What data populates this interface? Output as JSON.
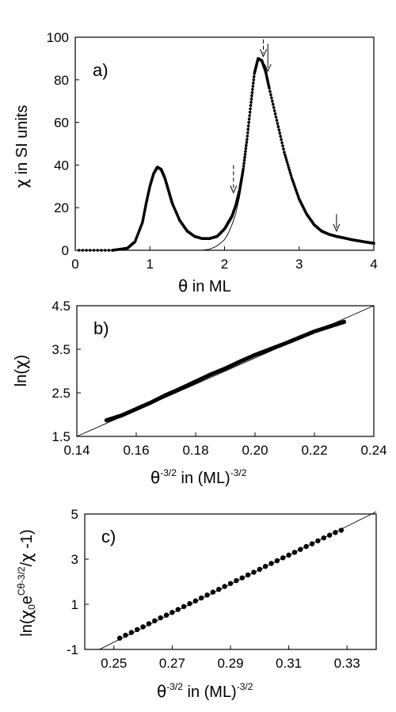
{
  "chart_data": [
    {
      "type": "line",
      "label": "a)",
      "xlabel": "θ in ML",
      "ylabel": "χ in SI units",
      "xlim": [
        0,
        4
      ],
      "ylim": [
        0,
        100
      ],
      "xticks": [
        0,
        1,
        2,
        3,
        4
      ],
      "yticks": [
        0,
        20,
        40,
        60,
        80,
        100
      ],
      "grid": false,
      "series": [
        {
          "style": "dense markers",
          "x": [
            0.5,
            0.7,
            0.8,
            0.9,
            0.95,
            1.0,
            1.05,
            1.1,
            1.15,
            1.2,
            1.25,
            1.3,
            1.4,
            1.5,
            1.6,
            1.7,
            1.8,
            1.9,
            2.0,
            2.05,
            2.1,
            2.15,
            2.2,
            2.25,
            2.3,
            2.35,
            2.4,
            2.45,
            2.5,
            2.55,
            2.6,
            2.7,
            2.8,
            2.9,
            3.0,
            3.1,
            3.2,
            3.3,
            3.4,
            3.5,
            3.6,
            3.7,
            3.8,
            3.9,
            4.0
          ],
          "y": [
            0,
            1,
            4,
            13,
            22,
            30,
            36,
            39,
            38,
            34,
            28,
            22,
            14,
            9,
            6.5,
            5.5,
            5.5,
            6.5,
            10,
            13,
            16,
            21,
            28,
            38,
            52,
            68,
            83,
            90,
            89,
            84,
            76,
            61,
            46,
            34,
            24,
            17,
            12,
            9,
            7.5,
            6.5,
            5.8,
            5.0,
            4.4,
            3.8,
            3.3
          ]
        },
        {
          "style": "thin fit curve",
          "x": [
            1.7,
            1.8,
            1.9,
            2.0,
            2.05,
            2.1,
            2.15,
            2.2,
            2.25,
            2.3,
            2.35,
            2.4,
            2.45,
            2.5,
            2.55,
            2.6,
            2.7,
            2.8,
            2.9,
            3.0,
            3.1,
            3.2,
            3.3,
            3.4,
            3.5,
            3.6,
            3.7,
            3.8,
            3.9,
            4.0
          ],
          "y": [
            0,
            0.5,
            2,
            5,
            8,
            12,
            17,
            25,
            35,
            50,
            66,
            82,
            90,
            89,
            84,
            76,
            61,
            46,
            34,
            24,
            17,
            12,
            9,
            7.5,
            6.5,
            5.8,
            5.0,
            4.4,
            3.8,
            3.3
          ]
        }
      ],
      "annotations": [
        {
          "kind": "solid-arrow",
          "x": 2.58,
          "y_top": 97,
          "y_tip": 84
        },
        {
          "kind": "dashed-arrow",
          "x": 2.52,
          "y_top": 99,
          "y_tip": 91
        },
        {
          "kind": "dashed-arrow",
          "x": 2.12,
          "y_top": 40,
          "y_tip": 27
        },
        {
          "kind": "solid-arrow",
          "x": 3.5,
          "y_top": 17,
          "y_tip": 9
        }
      ]
    },
    {
      "type": "scatter",
      "label": "b)",
      "xlabel": "θ^-3/2 in (ML)^-3/2",
      "ylabel": "ln(χ)",
      "xlim": [
        0.14,
        0.24
      ],
      "ylim": [
        1.5,
        4.5
      ],
      "xticks": [
        0.14,
        0.16,
        0.18,
        0.2,
        0.22,
        0.24
      ],
      "xtick_labels": [
        "0.14",
        "0.16",
        "0.18",
        "0.20",
        "0.22",
        "0.24"
      ],
      "yticks": [
        1.5,
        2.5,
        3.5,
        4.5
      ],
      "fit_line": {
        "x": [
          0.14,
          0.24
        ],
        "y": [
          1.5,
          4.5
        ]
      },
      "series": [
        {
          "x": [
            0.15,
            0.155,
            0.16,
            0.165,
            0.17,
            0.175,
            0.18,
            0.185,
            0.19,
            0.195,
            0.2,
            0.205,
            0.21,
            0.215,
            0.22,
            0.225,
            0.23
          ],
          "y": [
            1.87,
            1.98,
            2.13,
            2.28,
            2.45,
            2.6,
            2.76,
            2.92,
            3.06,
            3.22,
            3.37,
            3.5,
            3.63,
            3.77,
            3.91,
            4.02,
            4.13
          ]
        }
      ]
    },
    {
      "type": "scatter",
      "label": "c)",
      "xlabel": "θ^-3/2 in (ML)^-3/2",
      "ylabel": "ln(χ0 e^Cθ^-3/2 / χ - 1)",
      "xlim": [
        0.24,
        0.34
      ],
      "ylim": [
        -1,
        5
      ],
      "xticks": [
        0.25,
        0.27,
        0.29,
        0.31,
        0.33
      ],
      "yticks": [
        -1,
        1,
        3,
        5
      ],
      "fit_line": {
        "x": [
          0.245,
          0.34
        ],
        "y": [
          -1,
          5.1
        ]
      },
      "series": [
        {
          "x": [
            0.252,
            0.254,
            0.256,
            0.258,
            0.26,
            0.262,
            0.264,
            0.266,
            0.268,
            0.27,
            0.272,
            0.274,
            0.276,
            0.278,
            0.28,
            0.282,
            0.284,
            0.286,
            0.288,
            0.29,
            0.292,
            0.294,
            0.296,
            0.298,
            0.3,
            0.302,
            0.304,
            0.306,
            0.308,
            0.31,
            0.312,
            0.314,
            0.316,
            0.318,
            0.32,
            0.322,
            0.324,
            0.326,
            0.328
          ],
          "y": [
            -0.5,
            -0.37,
            -0.25,
            -0.12,
            0.0,
            0.14,
            0.27,
            0.4,
            0.52,
            0.64,
            0.77,
            0.9,
            1.03,
            1.15,
            1.28,
            1.41,
            1.54,
            1.66,
            1.79,
            1.92,
            2.05,
            2.17,
            2.3,
            2.42,
            2.55,
            2.68,
            2.81,
            2.93,
            3.06,
            3.18,
            3.3,
            3.43,
            3.56,
            3.68,
            3.81,
            3.94,
            4.06,
            4.18,
            4.28
          ]
        }
      ]
    }
  ]
}
